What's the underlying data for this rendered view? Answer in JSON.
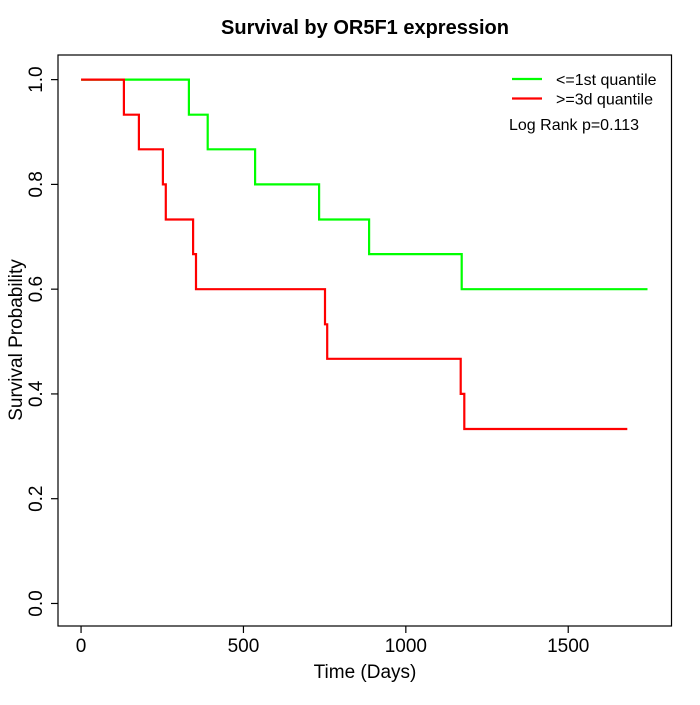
{
  "chart_data": {
    "type": "line",
    "variant": "kaplan-meier-step",
    "title": "Survival by OR5F1 expression",
    "xlabel": "Time (Days)",
    "ylabel": "Survival Probability",
    "x_ticks": [
      0,
      500,
      1000,
      1500
    ],
    "y_ticks": [
      0.0,
      0.2,
      0.4,
      0.6,
      0.8,
      1.0
    ],
    "xlim": [
      -71,
      1818
    ],
    "ylim": [
      -0.043,
      1.047
    ],
    "grid": false,
    "axis_color": "#000000",
    "background_color": "#ffffff",
    "legend": {
      "position": "top-right",
      "box": false
    },
    "annotation": "Log Rank p=0.113",
    "series": [
      {
        "name": "<=1st quantile",
        "color": "#00ff00",
        "start": [
          0,
          1.0
        ],
        "drops": [
          [
            332,
            0.933
          ],
          [
            390,
            0.867
          ],
          [
            536,
            0.8
          ],
          [
            733,
            0.733
          ],
          [
            887,
            0.667
          ],
          [
            1172,
            0.6
          ]
        ],
        "end_time": 1744,
        "final_value": 0.6
      },
      {
        "name": ">=3d quantile",
        "color": "#ff0000",
        "start": [
          0,
          1.0
        ],
        "drops": [
          [
            132,
            0.933
          ],
          [
            178,
            0.867
          ],
          [
            252,
            0.8
          ],
          [
            261,
            0.733
          ],
          [
            345,
            0.667
          ],
          [
            354,
            0.6
          ],
          [
            751,
            0.533
          ],
          [
            758,
            0.467
          ],
          [
            1169,
            0.4
          ],
          [
            1180,
            0.333
          ]
        ],
        "end_time": 1682,
        "final_value": 0.333
      }
    ]
  }
}
